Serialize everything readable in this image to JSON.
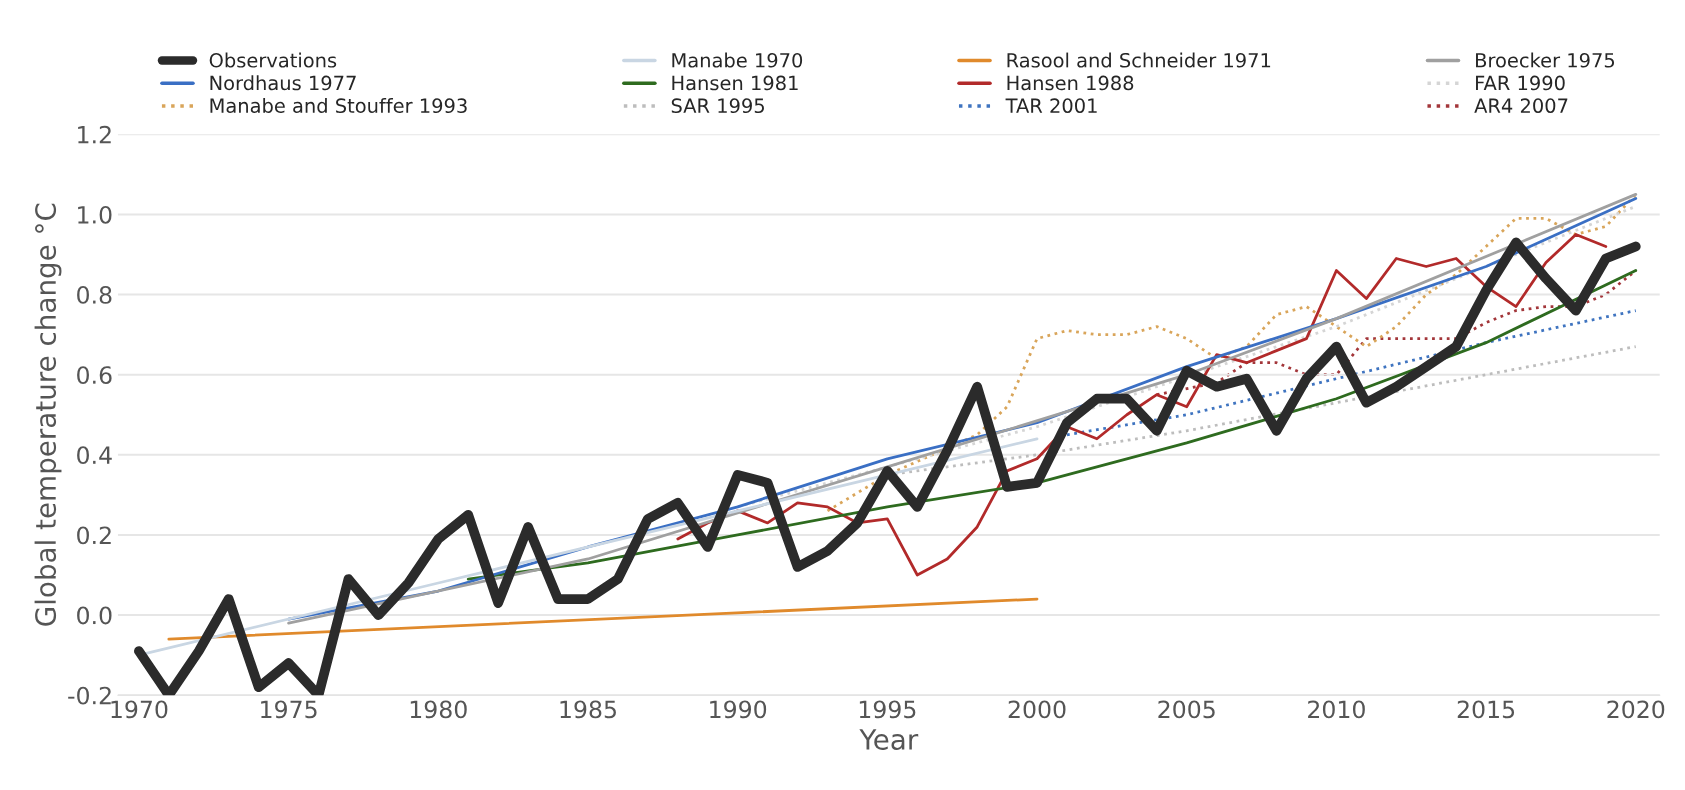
{
  "chart_data": {
    "type": "line",
    "xlabel": "Year",
    "ylabel": "Global temperature change °C",
    "xlim": [
      1969.3,
      2020.8
    ],
    "xticks": [
      1970,
      1975,
      1980,
      1985,
      1990,
      1995,
      2000,
      2005,
      2010,
      2015,
      2020
    ],
    "ylim": [
      -0.2,
      1.2
    ],
    "yticks": [
      {
        "value": -0.2,
        "label": "-0.2"
      },
      {
        "value": 0,
        "label": "0.0"
      },
      {
        "value": 0.2,
        "label": "0.2"
      },
      {
        "value": 0.4,
        "label": "0.4"
      },
      {
        "value": 0.6,
        "label": "0.6"
      },
      {
        "value": 0.8,
        "label": "0.8"
      },
      {
        "value": 1.0,
        "label": "1.0"
      },
      {
        "value": 1.2,
        "label": "1.2"
      }
    ],
    "grid": "y",
    "legend": "top",
    "series": [
      {
        "name": "Observations",
        "color": "#2b2b2b",
        "line_style": "solid",
        "x": [
          1970,
          1971,
          1972,
          1973,
          1974,
          1975,
          1976,
          1977,
          1978,
          1979,
          1980,
          1981,
          1982,
          1983,
          1984,
          1985,
          1986,
          1987,
          1988,
          1989,
          1990,
          1991,
          1992,
          1993,
          1994,
          1995,
          1996,
          1997,
          1998,
          1999,
          2000,
          2001,
          2002,
          2003,
          2004,
          2005,
          2006,
          2007,
          2008,
          2009,
          2010,
          2011,
          2012,
          2013,
          2014,
          2015,
          2016,
          2017,
          2018,
          2019,
          2020
        ],
        "values": [
          -0.09,
          -0.2,
          -0.09,
          0.04,
          -0.18,
          -0.12,
          -0.2,
          0.09,
          0.0,
          0.08,
          0.19,
          0.25,
          0.03,
          0.22,
          0.04,
          0.04,
          0.09,
          0.24,
          0.28,
          0.17,
          0.35,
          0.33,
          0.12,
          0.16,
          0.23,
          0.36,
          0.27,
          0.41,
          0.57,
          0.32,
          0.33,
          0.48,
          0.54,
          0.54,
          0.46,
          0.61,
          0.57,
          0.59,
          0.46,
          0.59,
          0.67,
          0.53,
          0.57,
          0.62,
          0.67,
          0.81,
          0.93,
          0.84,
          0.76,
          0.89,
          0.92
        ]
      },
      {
        "name": "Manabe 1970",
        "color": "#c9d6e3",
        "line_style": "solid",
        "x": [
          1970,
          1980,
          1990,
          2000
        ],
        "values": [
          -0.1,
          0.08,
          0.26,
          0.44
        ]
      },
      {
        "name": "Rasool and Schneider 1971",
        "color": "#e08a2c",
        "line_style": "solid",
        "x": [
          1971,
          2000
        ],
        "values": [
          -0.06,
          0.04
        ]
      },
      {
        "name": "Broecker 1975",
        "color": "#a0a0a0",
        "line_style": "solid",
        "x": [
          1975,
          1985,
          1995,
          2005,
          2010,
          2020
        ],
        "values": [
          -0.02,
          0.14,
          0.37,
          0.6,
          0.74,
          1.05
        ]
      },
      {
        "name": "Nordhaus 1977",
        "color": "#3a6fc4",
        "line_style": "solid",
        "x": [
          1975,
          1980,
          1985,
          1990,
          1995,
          2000,
          2005,
          2010,
          2015,
          2020
        ],
        "values": [
          -0.01,
          0.06,
          0.17,
          0.27,
          0.39,
          0.48,
          0.62,
          0.74,
          0.87,
          1.04
        ]
      },
      {
        "name": "Hansen 1981",
        "color": "#2e6b1f",
        "line_style": "solid",
        "x": [
          1981,
          1985,
          1990,
          1995,
          2000,
          2005,
          2010,
          2015,
          2020
        ],
        "values": [
          0.09,
          0.13,
          0.2,
          0.27,
          0.33,
          0.43,
          0.54,
          0.68,
          0.86
        ]
      },
      {
        "name": "Hansen 1988",
        "color": "#b22a2a",
        "line_style": "solid",
        "x": [
          1988,
          1989,
          1990,
          1991,
          1992,
          1993,
          1994,
          1995,
          1996,
          1997,
          1998,
          1999,
          2000,
          2001,
          2002,
          2003,
          2004,
          2005,
          2006,
          2007,
          2008,
          2009,
          2010,
          2011,
          2012,
          2013,
          2014,
          2015,
          2016,
          2017,
          2018,
          2019
        ],
        "values": [
          0.19,
          0.23,
          0.26,
          0.23,
          0.28,
          0.27,
          0.23,
          0.24,
          0.1,
          0.14,
          0.22,
          0.36,
          0.39,
          0.47,
          0.44,
          0.5,
          0.55,
          0.52,
          0.65,
          0.63,
          0.66,
          0.69,
          0.86,
          0.79,
          0.89,
          0.87,
          0.89,
          0.82,
          0.77,
          0.88,
          0.95,
          0.92
        ]
      },
      {
        "name": "FAR 1990",
        "color": "#d5d5d5",
        "line_style": "dotted",
        "x": [
          1990,
          2000,
          2010,
          2020
        ],
        "values": [
          0.27,
          0.47,
          0.72,
          1.02
        ]
      },
      {
        "name": "Manabe and Stouffer 1993",
        "color": "#d9a55a",
        "line_style": "dotted",
        "x": [
          1993,
          1995,
          1998,
          1999,
          2000,
          2001,
          2002,
          2003,
          2004,
          2005,
          2006,
          2007,
          2008,
          2009,
          2010,
          2011,
          2012,
          2013,
          2014,
          2015,
          2016,
          2017,
          2018,
          2019,
          2020
        ],
        "values": [
          0.26,
          0.35,
          0.45,
          0.52,
          0.69,
          0.71,
          0.7,
          0.7,
          0.72,
          0.69,
          0.64,
          0.67,
          0.75,
          0.77,
          0.72,
          0.67,
          0.72,
          0.8,
          0.85,
          0.92,
          0.99,
          0.99,
          0.95,
          0.97,
          1.05
        ]
      },
      {
        "name": "SAR 1995",
        "color": "#bdbdbd",
        "line_style": "dotted",
        "x": [
          1995,
          2000,
          2005,
          2010,
          2015,
          2020
        ],
        "values": [
          0.35,
          0.4,
          0.46,
          0.53,
          0.6,
          0.67
        ]
      },
      {
        "name": "TAR 2001",
        "color": "#3f74c0",
        "line_style": "dotted",
        "x": [
          2001,
          2005,
          2010,
          2015,
          2020
        ],
        "values": [
          0.45,
          0.5,
          0.59,
          0.68,
          0.76
        ]
      },
      {
        "name": "AR4 2007",
        "color": "#a3363a",
        "line_style": "dotted",
        "x": [
          2004,
          2006,
          2007,
          2008,
          2009,
          2010,
          2011,
          2012,
          2013,
          2014,
          2015,
          2016,
          2017,
          2018,
          2019,
          2020
        ],
        "values": [
          0.55,
          0.58,
          0.63,
          0.63,
          0.6,
          0.6,
          0.69,
          0.69,
          0.69,
          0.69,
          0.73,
          0.76,
          0.77,
          0.77,
          0.8,
          0.86
        ]
      }
    ]
  }
}
